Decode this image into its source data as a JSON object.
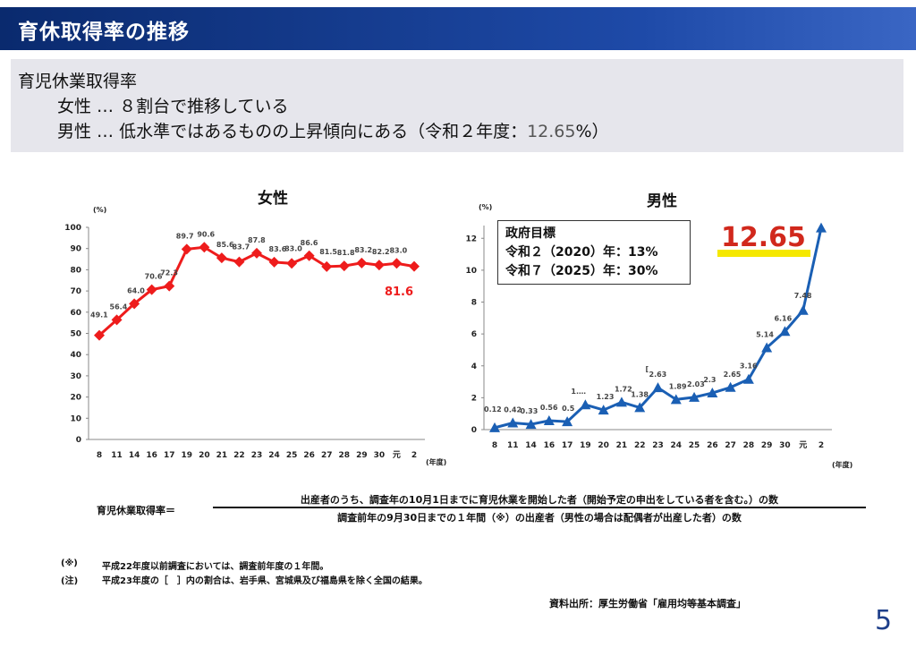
{
  "header": {
    "title": "育休取得率の推移"
  },
  "summary": {
    "line0": "育児休業取得率",
    "line1": "女性 … ８割台で推移している",
    "line2_prefix": "男性 … 低水準ではあるものの上昇傾向にある（令和２年度：",
    "line2_value": "12.65",
    "line2_suffix": "%）"
  },
  "chart_data": [
    {
      "type": "line",
      "title": "女性",
      "ylabel": "(%)",
      "xlabel": "(年度)",
      "ylim": [
        0,
        100
      ],
      "yticks": [
        0,
        10,
        20,
        30,
        40,
        50,
        60,
        70,
        80,
        90,
        100
      ],
      "categories": [
        "8",
        "11",
        "14",
        "16",
        "17",
        "19",
        "20",
        "21",
        "22",
        "23",
        "24",
        "25",
        "26",
        "27",
        "28",
        "29",
        "30",
        "元",
        "2"
      ],
      "series": [
        {
          "values": [
            49.1,
            56.4,
            64.0,
            70.6,
            72.3,
            89.7,
            90.6,
            85.6,
            83.7,
            87.8,
            83.6,
            83.0,
            86.6,
            81.5,
            81.8,
            83.2,
            82.2,
            83.0,
            81.6
          ],
          "color": "#ee1c1c"
        }
      ],
      "point_labels": [
        "49.1",
        "56.4",
        "64.0",
        "70.6",
        "72.3",
        "89.7",
        "90.6",
        "85.6",
        "83.7",
        "87.8",
        "83.6",
        "83.0",
        "86.6",
        "81.5",
        "81.8",
        "83.2",
        "82.2",
        "83.0",
        ""
      ],
      "highlight": "81.6",
      "grid": false
    },
    {
      "type": "line",
      "title": "男性",
      "ylabel": "(%)",
      "xlabel": "(年度)",
      "ylim": [
        0,
        12.8
      ],
      "yticks": [
        0,
        2,
        4,
        6,
        8,
        10,
        12
      ],
      "categories": [
        "8",
        "11",
        "14",
        "16",
        "17",
        "19",
        "20",
        "21",
        "22",
        "23",
        "24",
        "25",
        "26",
        "27",
        "28",
        "29",
        "30",
        "元",
        "2"
      ],
      "series": [
        {
          "values": [
            0.12,
            0.42,
            0.33,
            0.56,
            0.5,
            1.56,
            1.23,
            1.72,
            1.38,
            2.63,
            1.89,
            2.03,
            2.3,
            2.65,
            3.16,
            5.14,
            6.16,
            7.48,
            12.65
          ],
          "color": "#1a5fb4"
        }
      ],
      "point_labels": [
        "0.12",
        "0.42",
        "0.33",
        "0.56",
        "0.5",
        "1.…",
        "1.23",
        "1.72",
        "1.38",
        "2.63",
        "1.89",
        "2.03",
        "2.3",
        "2.65",
        "3.16",
        "5.14",
        "6.16",
        "7.48",
        ""
      ],
      "bracket_note": "[",
      "highlight": "12.65",
      "goal_box": {
        "title": "政府目標",
        "line1": "令和２（2020）年：13%",
        "line2": "令和７（2025）年：30%"
      },
      "grid": false
    }
  ],
  "formula": {
    "label": "育児休業取得率＝",
    "numerator": "出産者のうち、調査年の10月1日までに育児休業を開始した者（開始予定の申出をしている者を含む。）の数",
    "denominator": "調査前年の9月30日までの１年間（※）の出産者（男性の場合は配偶者が出産した者）の数"
  },
  "notes": [
    {
      "mark": "(※)",
      "text": "平成22年度以前調査においては、調査前年度の１年間。"
    },
    {
      "mark": "(注)",
      "text": "平成23年度の［　］内の割合は、岩手県、宮城県及び福島県を除く全国の結果。"
    }
  ],
  "source": "資料出所：厚生労働省「雇用均等基本調査」",
  "page_number": "5"
}
